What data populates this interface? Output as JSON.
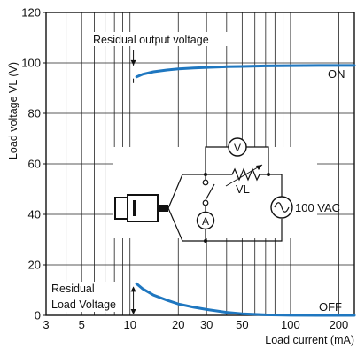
{
  "chart_data": {
    "type": "line",
    "xlabel": "Load current (mA)",
    "ylabel": "Load voltage VL  (V)",
    "x_scale": "log",
    "xlim": [
      3,
      250
    ],
    "ylim": [
      0,
      120
    ],
    "x_ticks": [
      3,
      5,
      10,
      20,
      30,
      50,
      100,
      200
    ],
    "x_tick_labels": [
      "3",
      "5",
      "10",
      "20",
      "30",
      "50",
      "100",
      "200"
    ],
    "y_ticks": [
      0,
      20,
      40,
      60,
      80,
      100,
      120
    ],
    "y_tick_labels": [
      "0",
      "20",
      "40",
      "60",
      "80",
      "100",
      "120"
    ],
    "grid": true,
    "series_color": "#1f77c0",
    "series": [
      {
        "name": "ON",
        "x": [
          11,
          12,
          14,
          17,
          20,
          25,
          30,
          40,
          50,
          70,
          100,
          150,
          200,
          250
        ],
        "y": [
          94.5,
          95.5,
          96.5,
          97.2,
          97.6,
          98.0,
          98.2,
          98.5,
          98.6,
          98.8,
          98.9,
          99.0,
          99.0,
          99.0
        ]
      },
      {
        "name": "OFF",
        "x": [
          11,
          12,
          14,
          17,
          20,
          25,
          30,
          40,
          50,
          70,
          100,
          150,
          200,
          250
        ],
        "y": [
          12.5,
          10.5,
          8.0,
          6.0,
          4.5,
          3.2,
          2.3,
          1.2,
          0.6,
          0.2,
          0.05,
          0,
          0,
          0
        ]
      }
    ],
    "annotations": {
      "residual_output_voltage": "Residual output voltage",
      "residual_load_voltage_line1": "Residual",
      "residual_load_voltage_line2": "Load Voltage"
    },
    "circuit": {
      "voltmeter": "V",
      "ammeter": "A",
      "load_label": "VL",
      "supply_label": "100 VAC"
    }
  }
}
